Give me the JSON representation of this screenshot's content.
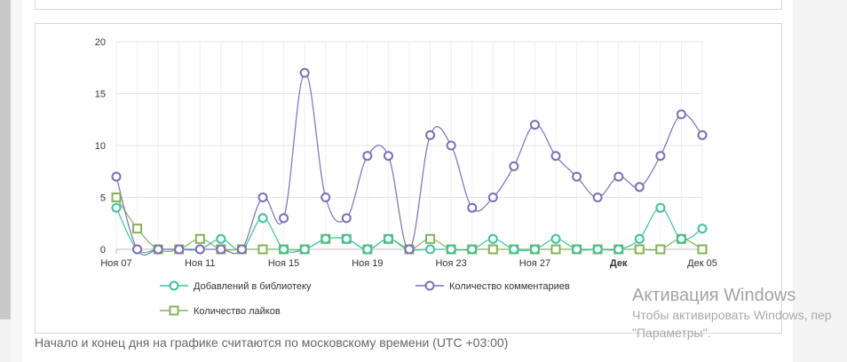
{
  "note": "Начало и конец дня на графике считаются по московскому времени (UTC +03:00)",
  "watermark": {
    "title": "Активация Windows",
    "line1": "Чтобы активировать Windows, пер",
    "line2": "\"Параметры\"."
  },
  "chart_data": {
    "type": "line",
    "title": "",
    "xlabel": "",
    "ylabel": "",
    "ylim": [
      0,
      20
    ],
    "yticks": [
      "0",
      "5",
      "10",
      "15",
      "20"
    ],
    "x": [
      "Ноя 07",
      "Ноя 08",
      "Ноя 09",
      "Ноя 10",
      "Ноя 11",
      "Ноя 12",
      "Ноя 13",
      "Ноя 14",
      "Ноя 15",
      "Ноя 16",
      "Ноя 17",
      "Ноя 18",
      "Ноя 19",
      "Ноя 20",
      "Ноя 21",
      "Ноя 22",
      "Ноя 23",
      "Ноя 24",
      "Ноя 25",
      "Ноя 26",
      "Ноя 27",
      "Ноя 28",
      "Ноя 29",
      "Ноя 30",
      "Дек 01",
      "Дек 02",
      "Дек 03",
      "Дек 04",
      "Дек 05"
    ],
    "tick_labels": [
      {
        "index": 0,
        "label": "Ноя 07",
        "bold": false
      },
      {
        "index": 4,
        "label": "Ноя 11",
        "bold": false
      },
      {
        "index": 8,
        "label": "Ноя 15",
        "bold": false
      },
      {
        "index": 12,
        "label": "Ноя 19",
        "bold": false
      },
      {
        "index": 16,
        "label": "Ноя 23",
        "bold": false
      },
      {
        "index": 20,
        "label": "Ноя 27",
        "bold": false
      },
      {
        "index": 24,
        "label": "Дек",
        "bold": true
      },
      {
        "index": 28,
        "label": "Дек 05",
        "bold": false
      }
    ],
    "grid": true,
    "legend_position": "bottom",
    "series": [
      {
        "name": "Добавлений в библиотеку",
        "color": "#3fbf9f",
        "marker": "circle",
        "values": [
          4,
          0,
          0,
          0,
          0,
          1,
          0,
          3,
          0,
          0,
          1,
          1,
          0,
          1,
          0,
          0,
          0,
          0,
          1,
          0,
          0,
          1,
          0,
          0,
          0,
          1,
          4,
          1,
          2
        ]
      },
      {
        "name": "Количество комментариев",
        "color": "#7a6fb5",
        "marker": "circle",
        "values": [
          7,
          0,
          0,
          0,
          0,
          0,
          0,
          5,
          3,
          17,
          5,
          3,
          9,
          9,
          0,
          11,
          10,
          4,
          5,
          8,
          12,
          9,
          7,
          5,
          7,
          6,
          9,
          13,
          11
        ]
      },
      {
        "name": "Количество лайков",
        "color": "#86b05a",
        "marker": "square",
        "values": [
          5,
          2,
          0,
          0,
          1,
          0,
          0,
          0,
          0,
          0,
          1,
          1,
          0,
          1,
          0,
          1,
          0,
          0,
          0,
          0,
          0,
          0,
          0,
          0,
          0,
          0,
          0,
          1,
          0
        ]
      }
    ]
  }
}
